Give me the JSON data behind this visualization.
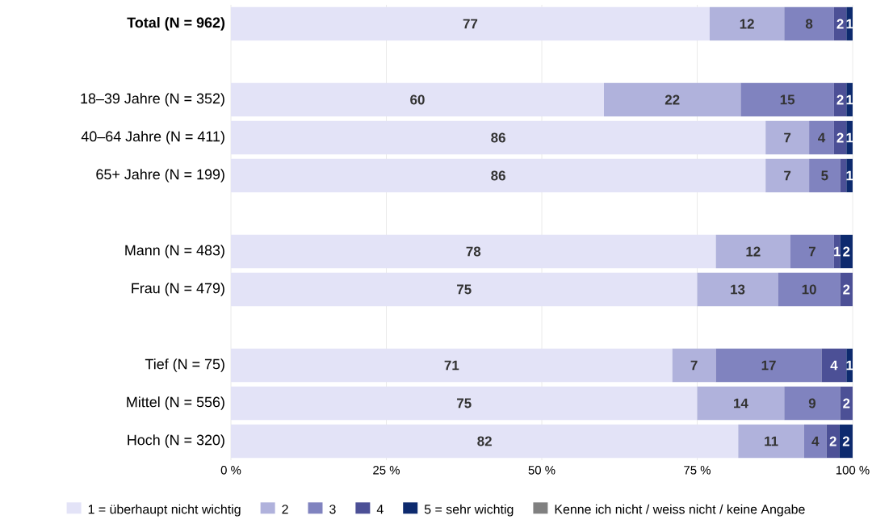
{
  "chart_data": {
    "type": "bar",
    "orientation": "horizontal",
    "stacked": true,
    "categories": [
      "**Total (N = 962)**",
      null,
      "18–39 Jahre (N = 352)",
      "40–64 Jahre (N = 411)",
      "65+ Jahre (N = 199)",
      null,
      "Mann (N = 483)",
      "Frau (N = 479)",
      null,
      "Tief (N = 75)",
      "Mittel (N = 556)",
      "Hoch (N = 320)"
    ],
    "series": [
      {
        "name": "1 = überhaupt nicht wichtig",
        "color": "#e3e3f7",
        "values": [
          77,
          null,
          60,
          86,
          86,
          null,
          78,
          75,
          null,
          71,
          75,
          81.6
        ],
        "value_labels": [
          "77",
          null,
          "60",
          "86",
          "86",
          null,
          "78",
          "75",
          null,
          "71",
          "75",
          "82"
        ]
      },
      {
        "name": "2",
        "color": "#b0b2dc",
        "values": [
          12,
          null,
          22,
          7,
          7,
          null,
          12,
          13,
          null,
          7,
          14,
          10.6
        ],
        "value_labels": [
          "12",
          null,
          "22",
          "7",
          "7",
          null,
          "12",
          "13",
          null,
          "7",
          "14",
          "11"
        ]
      },
      {
        "name": "3",
        "color": "#8083bf",
        "values": [
          8,
          null,
          15,
          4,
          5,
          null,
          7,
          10,
          null,
          17,
          9,
          3.6
        ],
        "value_labels": [
          "8",
          null,
          "15",
          "4",
          "5",
          null,
          "7",
          "10",
          null,
          "17",
          "9",
          "4"
        ]
      },
      {
        "name": "4",
        "color": "#4c5096",
        "values": [
          2,
          null,
          2,
          2,
          1,
          null,
          1,
          2,
          null,
          4,
          2,
          2.1
        ],
        "value_labels": [
          "2",
          null,
          "2",
          "2",
          null,
          null,
          "1",
          "2",
          null,
          "4",
          "2",
          "2"
        ]
      },
      {
        "name": "5 = sehr wichtig",
        "color": "#0d2a6e",
        "values": [
          1,
          null,
          1,
          1,
          1,
          null,
          2,
          null,
          null,
          1,
          null,
          2.1
        ],
        "value_labels": [
          "1",
          null,
          "1",
          "1",
          "1",
          null,
          "2",
          null,
          null,
          "1",
          null,
          "2"
        ]
      },
      {
        "name": "Kenne ich nicht / weiss nicht / keine Angabe",
        "color": "#808080",
        "values": [
          null,
          null,
          null,
          null,
          null,
          null,
          null,
          null,
          null,
          null,
          null,
          null
        ]
      }
    ],
    "xlim": [
      0,
      100
    ],
    "xticks": [
      {
        "value": 0,
        "label": "0 %"
      },
      {
        "value": 25,
        "label": "25 %"
      },
      {
        "value": 50,
        "label": "50 %"
      },
      {
        "value": 75,
        "label": "75 %"
      },
      {
        "value": 100,
        "label": "100 %"
      }
    ],
    "grid": "x",
    "legend": "bottom"
  }
}
